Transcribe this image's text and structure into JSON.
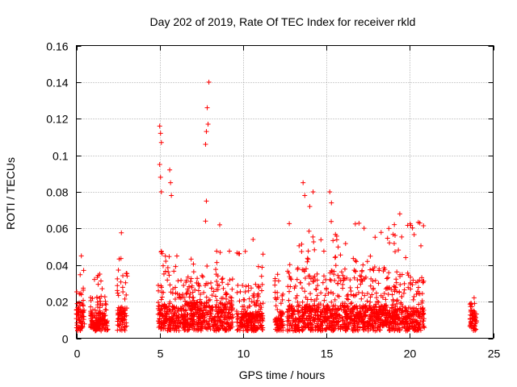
{
  "chart_data": {
    "type": "scatter",
    "title": "Day 202 of 2019, Rate Of TEC Index for receiver rkld",
    "xlabel": "GPS time / hours",
    "ylabel": "ROTI / TECUs",
    "xlim": [
      0,
      25
    ],
    "ylim": [
      0,
      0.16
    ],
    "x_ticks": [
      0,
      5,
      10,
      15,
      20,
      25
    ],
    "x_tick_labels": [
      "0",
      "5",
      "10",
      "15",
      "20",
      "25"
    ],
    "y_ticks": [
      0,
      0.02,
      0.04,
      0.06,
      0.08,
      0.1,
      0.12,
      0.14,
      0.16
    ],
    "y_tick_labels": [
      "0",
      "0.02",
      "0.04",
      "0.06",
      "0.08",
      "0.1",
      "0.12",
      "0.14",
      "0.16"
    ],
    "grid": true,
    "marker": "+",
    "color": "#ff0000",
    "series": [
      {
        "name": "ROTI",
        "activity_segments": [
          {
            "start": 0.0,
            "end": 0.5,
            "base": 0.012,
            "peak": 0.035
          },
          {
            "start": 0.85,
            "end": 1.9,
            "base": 0.01,
            "peak": 0.034
          },
          {
            "start": 2.45,
            "end": 3.05,
            "base": 0.013,
            "peak": 0.058
          },
          {
            "start": 4.9,
            "end": 6.55,
            "base": 0.014,
            "peak": 0.045
          },
          {
            "start": 6.55,
            "end": 9.4,
            "base": 0.016,
            "peak": 0.045
          },
          {
            "start": 9.6,
            "end": 11.2,
            "base": 0.01,
            "peak": 0.045
          },
          {
            "start": 11.9,
            "end": 12.4,
            "base": 0.01,
            "peak": 0.035
          },
          {
            "start": 12.65,
            "end": 18.6,
            "base": 0.014,
            "peak": 0.06
          },
          {
            "start": 18.6,
            "end": 20.9,
            "base": 0.013,
            "peak": 0.06
          },
          {
            "start": 23.6,
            "end": 24.0,
            "base": 0.01,
            "peak": 0.026
          }
        ],
        "notable_points": [
          {
            "x": 0.3,
            "y": 0.045
          },
          {
            "x": 5.0,
            "y": 0.116
          },
          {
            "x": 5.05,
            "y": 0.112
          },
          {
            "x": 5.1,
            "y": 0.107
          },
          {
            "x": 5.0,
            "y": 0.095
          },
          {
            "x": 5.05,
            "y": 0.088
          },
          {
            "x": 5.1,
            "y": 0.08
          },
          {
            "x": 5.6,
            "y": 0.092
          },
          {
            "x": 5.65,
            "y": 0.085
          },
          {
            "x": 5.7,
            "y": 0.078
          },
          {
            "x": 7.95,
            "y": 0.14
          },
          {
            "x": 7.85,
            "y": 0.126
          },
          {
            "x": 7.9,
            "y": 0.117
          },
          {
            "x": 7.8,
            "y": 0.113
          },
          {
            "x": 7.75,
            "y": 0.106
          },
          {
            "x": 7.8,
            "y": 0.075
          },
          {
            "x": 7.75,
            "y": 0.064
          },
          {
            "x": 13.6,
            "y": 0.085
          },
          {
            "x": 13.7,
            "y": 0.078
          },
          {
            "x": 14.2,
            "y": 0.08
          },
          {
            "x": 15.2,
            "y": 0.08
          },
          {
            "x": 15.3,
            "y": 0.074
          },
          {
            "x": 14.0,
            "y": 0.072
          },
          {
            "x": 19.4,
            "y": 0.068
          },
          {
            "x": 20.6,
            "y": 0.063
          },
          {
            "x": 8.6,
            "y": 0.062
          },
          {
            "x": 10.6,
            "y": 0.054
          }
        ]
      }
    ]
  }
}
